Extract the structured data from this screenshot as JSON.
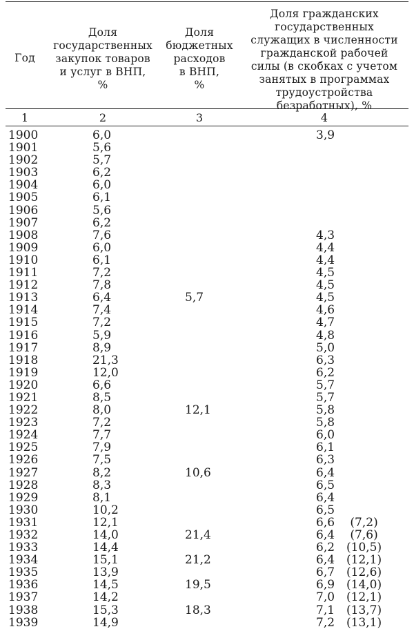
{
  "table": {
    "headers": [
      "Год",
      "Доля государственных закупок товаров и услуг в ВНП, %",
      "Доля бюджетных расходов в ВНП, %",
      "Доля гражданских государственных служащих в численности гражданской рабочей силы (в скобках с учетом занятых в программах трудоустройства безработных), %"
    ],
    "header_lines": [
      [
        "Год"
      ],
      [
        "Доля",
        "государственных",
        "закупок товаров",
        "и услуг в ВНП,",
        "%"
      ],
      [
        "Доля",
        "бюджетных",
        "расходов",
        "в ВНП,",
        "%"
      ],
      [
        "Доля гражданских",
        "государственных",
        "служащих в численности",
        "гражданской рабочей",
        "силы (в скобках с учетом",
        "занятых в программах",
        "трудоустройства",
        "безработных), %"
      ]
    ],
    "column_numbers": [
      "1",
      "2",
      "3",
      "4"
    ],
    "rows": [
      {
        "year": "1900",
        "gov_purchases": "6,0",
        "budget": "",
        "civil_servants": "3,9",
        "with_relief": ""
      },
      {
        "year": "1901",
        "gov_purchases": "5,6",
        "budget": "",
        "civil_servants": "",
        "with_relief": ""
      },
      {
        "year": "1902",
        "gov_purchases": "5,7",
        "budget": "",
        "civil_servants": "",
        "with_relief": ""
      },
      {
        "year": "1903",
        "gov_purchases": "6,2",
        "budget": "",
        "civil_servants": "",
        "with_relief": ""
      },
      {
        "year": "1904",
        "gov_purchases": "6,0",
        "budget": "",
        "civil_servants": "",
        "with_relief": ""
      },
      {
        "year": "1905",
        "gov_purchases": "6,1",
        "budget": "",
        "civil_servants": "",
        "with_relief": ""
      },
      {
        "year": "1906",
        "gov_purchases": "5,6",
        "budget": "",
        "civil_servants": "",
        "with_relief": ""
      },
      {
        "year": "1907",
        "gov_purchases": "6,2",
        "budget": "",
        "civil_servants": "",
        "with_relief": ""
      },
      {
        "year": "1908",
        "gov_purchases": "7,6",
        "budget": "",
        "civil_servants": "4,3",
        "with_relief": ""
      },
      {
        "year": "1909",
        "gov_purchases": "6,0",
        "budget": "",
        "civil_servants": "4,4",
        "with_relief": ""
      },
      {
        "year": "1910",
        "gov_purchases": "6,1",
        "budget": "",
        "civil_servants": "4,4",
        "with_relief": ""
      },
      {
        "year": "1911",
        "gov_purchases": "7,2",
        "budget": "",
        "civil_servants": "4,5",
        "with_relief": ""
      },
      {
        "year": "1912",
        "gov_purchases": "7,8",
        "budget": "",
        "civil_servants": "4,5",
        "with_relief": ""
      },
      {
        "year": "1913",
        "gov_purchases": "6,4",
        "budget": "5,7",
        "civil_servants": "4,5",
        "with_relief": ""
      },
      {
        "year": "1914",
        "gov_purchases": "7,4",
        "budget": "",
        "civil_servants": "4,6",
        "with_relief": ""
      },
      {
        "year": "1915",
        "gov_purchases": "7,2",
        "budget": "",
        "civil_servants": "4,7",
        "with_relief": ""
      },
      {
        "year": "1916",
        "gov_purchases": "5,9",
        "budget": "",
        "civil_servants": "4,8",
        "with_relief": ""
      },
      {
        "year": "1917",
        "gov_purchases": "8,9",
        "budget": "",
        "civil_servants": "5,0",
        "with_relief": ""
      },
      {
        "year": "1918",
        "gov_purchases": "21,3",
        "budget": "",
        "civil_servants": "6,3",
        "with_relief": ""
      },
      {
        "year": "1919",
        "gov_purchases": "12,0",
        "budget": "",
        "civil_servants": "6,2",
        "with_relief": ""
      },
      {
        "year": "1920",
        "gov_purchases": "6,6",
        "budget": "",
        "civil_servants": "5,7",
        "with_relief": ""
      },
      {
        "year": "1921",
        "gov_purchases": "8,5",
        "budget": "",
        "civil_servants": "5,7",
        "with_relief": ""
      },
      {
        "year": "1922",
        "gov_purchases": "8,0",
        "budget": "12,1",
        "civil_servants": "5,8",
        "with_relief": ""
      },
      {
        "year": "1923",
        "gov_purchases": "7,2",
        "budget": "",
        "civil_servants": "5,8",
        "with_relief": ""
      },
      {
        "year": "1924",
        "gov_purchases": "7,7",
        "budget": "",
        "civil_servants": "6,0",
        "with_relief": ""
      },
      {
        "year": "1925",
        "gov_purchases": "7,9",
        "budget": "",
        "civil_servants": "6,1",
        "with_relief": ""
      },
      {
        "year": "1926",
        "gov_purchases": "7,5",
        "budget": "",
        "civil_servants": "6,3",
        "with_relief": ""
      },
      {
        "year": "1927",
        "gov_purchases": "8,2",
        "budget": "10,6",
        "civil_servants": "6,4",
        "with_relief": ""
      },
      {
        "year": "1928",
        "gov_purchases": "8,3",
        "budget": "",
        "civil_servants": "6,5",
        "with_relief": ""
      },
      {
        "year": "1929",
        "gov_purchases": "8,1",
        "budget": "",
        "civil_servants": "6,4",
        "with_relief": ""
      },
      {
        "year": "1930",
        "gov_purchases": "10,2",
        "budget": "",
        "civil_servants": "6,5",
        "with_relief": ""
      },
      {
        "year": "1931",
        "gov_purchases": "12,1",
        "budget": "",
        "civil_servants": "6,6",
        "with_relief": " (7,2)"
      },
      {
        "year": "1932",
        "gov_purchases": "14,0",
        "budget": "21,4",
        "civil_servants": "6,4",
        "with_relief": " (7,6)"
      },
      {
        "year": "1933",
        "gov_purchases": "14,4",
        "budget": "",
        "civil_servants": "6,2",
        "with_relief": "(10,5)"
      },
      {
        "year": "1934",
        "gov_purchases": "15,1",
        "budget": "21,2",
        "civil_servants": "6,4",
        "with_relief": "(12,1)"
      },
      {
        "year": "1935",
        "gov_purchases": "13,9",
        "budget": "",
        "civil_servants": "6,7",
        "with_relief": "(12,6)"
      },
      {
        "year": "1936",
        "gov_purchases": "14,5",
        "budget": "19,5",
        "civil_servants": "6,9",
        "with_relief": "(14,0)"
      },
      {
        "year": "1937",
        "gov_purchases": "14,2",
        "budget": "",
        "civil_servants": "7,0",
        "with_relief": "(12,1)"
      },
      {
        "year": "1938",
        "gov_purchases": "15,3",
        "budget": "18,3",
        "civil_servants": "7,1",
        "with_relief": "(13,7)"
      },
      {
        "year": "1939",
        "gov_purchases": "14,9",
        "budget": "",
        "civil_servants": "7,2",
        "with_relief": "(13,1)"
      }
    ]
  }
}
